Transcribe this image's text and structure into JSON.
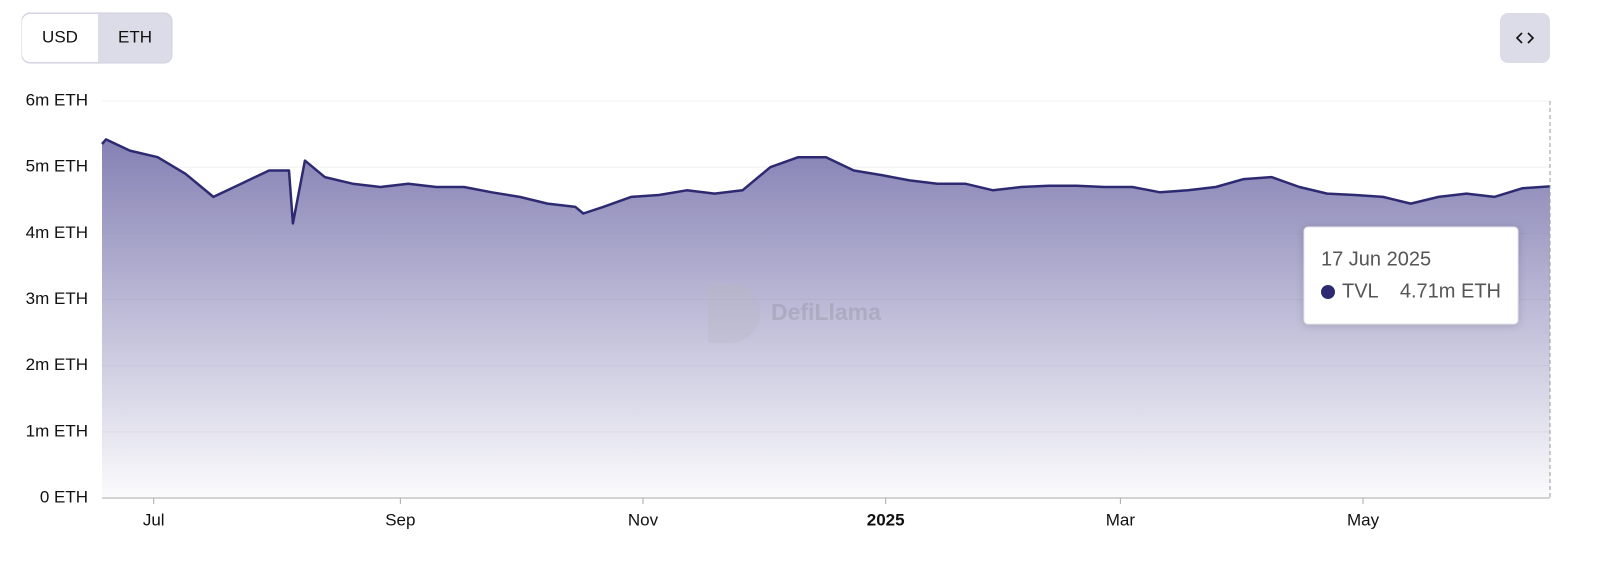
{
  "controls": {
    "buttons": [
      "USD",
      "ETH"
    ]
  },
  "watermark": "DefiLlama",
  "chart_data": {
    "type": "area",
    "x": [
      "2024-06-18",
      "2024-06-19",
      "2024-06-25",
      "2024-07-02",
      "2024-07-09",
      "2024-07-16",
      "2024-07-23",
      "2024-07-30",
      "2024-08-04",
      "2024-08-05",
      "2024-08-08",
      "2024-08-13",
      "2024-08-20",
      "2024-08-27",
      "2024-09-03",
      "2024-09-10",
      "2024-09-17",
      "2024-09-24",
      "2024-10-01",
      "2024-10-08",
      "2024-10-15",
      "2024-10-17",
      "2024-10-22",
      "2024-10-29",
      "2024-11-05",
      "2024-11-12",
      "2024-11-19",
      "2024-11-26",
      "2024-12-03",
      "2024-12-10",
      "2024-12-17",
      "2024-12-24",
      "2024-12-31",
      "2025-01-07",
      "2025-01-14",
      "2025-01-21",
      "2025-01-28",
      "2025-02-04",
      "2025-02-11",
      "2025-02-18",
      "2025-02-25",
      "2025-03-04",
      "2025-03-11",
      "2025-03-18",
      "2025-03-25",
      "2025-04-01",
      "2025-04-08",
      "2025-04-15",
      "2025-04-22",
      "2025-04-29",
      "2025-05-06",
      "2025-05-13",
      "2025-05-20",
      "2025-05-27",
      "2025-06-03",
      "2025-06-10",
      "2025-06-17"
    ],
    "series": [
      {
        "name": "TVL",
        "color": "#2e2a72",
        "values": [
          5.35,
          5.42,
          5.25,
          5.15,
          4.9,
          4.55,
          4.75,
          4.95,
          4.95,
          4.15,
          5.1,
          4.85,
          4.75,
          4.7,
          4.75,
          4.7,
          4.7,
          4.62,
          4.55,
          4.45,
          4.4,
          4.3,
          4.4,
          4.55,
          4.58,
          4.65,
          4.6,
          4.65,
          5.0,
          5.15,
          5.15,
          4.95,
          4.88,
          4.8,
          4.75,
          4.75,
          4.65,
          4.7,
          4.72,
          4.72,
          4.7,
          4.7,
          4.62,
          4.65,
          4.7,
          4.82,
          4.85,
          4.7,
          4.6,
          4.58,
          4.55,
          4.45,
          4.55,
          4.6,
          4.55,
          4.68,
          4.71
        ]
      }
    ],
    "ylim": [
      0,
      6
    ],
    "yticks": [
      {
        "value": 0,
        "label": "0 ETH"
      },
      {
        "value": 1,
        "label": "1m ETH"
      },
      {
        "value": 2,
        "label": "2m ETH"
      },
      {
        "value": 3,
        "label": "3m ETH"
      },
      {
        "value": 4,
        "label": "4m ETH"
      },
      {
        "value": 5,
        "label": "5m ETH"
      },
      {
        "value": 6,
        "label": "6m ETH"
      }
    ],
    "xlim": [
      "2024-06-18",
      "2025-06-17"
    ],
    "xticks": [
      {
        "value": "2024-07-01",
        "label": "Jul"
      },
      {
        "value": "2024-09-01",
        "label": "Sep"
      },
      {
        "value": "2024-11-01",
        "label": "Nov"
      },
      {
        "value": "2025-01-01",
        "label": "2025"
      },
      {
        "value": "2025-03-01",
        "label": "Mar"
      },
      {
        "value": "2025-05-01",
        "label": "May"
      }
    ],
    "grid": true,
    "tooltip": {
      "date": "17 Jun 2025",
      "value_label": "4.71m ETH"
    }
  }
}
